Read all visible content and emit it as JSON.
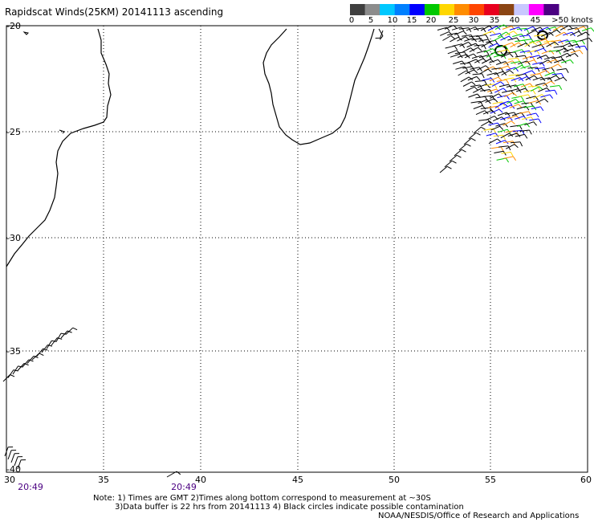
{
  "title": "Rapidscat Winds(25KM) 20141113 ascending",
  "legend": {
    "labels": [
      "0",
      "5",
      "10",
      "15",
      "20",
      "25",
      "30",
      "35",
      "40",
      "45",
      ">50 knots"
    ],
    "colors": [
      "#3f3f3f",
      "#8c8c8c",
      "#00c8ff",
      "#0080ff",
      "#0000ff",
      "#00c800",
      "#ffd700",
      "#ff8c00",
      "#ff4500",
      "#e8001e",
      "#8b4513",
      "#c8c8ff",
      "#ff00ff",
      "#4b0082"
    ]
  },
  "axes": {
    "lat_labels": [
      "-20",
      "-25",
      "-30",
      "-35",
      "-40"
    ],
    "lon_labels": [
      "30",
      "35",
      "40",
      "45",
      "50",
      "55",
      "60"
    ]
  },
  "times": [
    "20:49",
    "20:49"
  ],
  "notes": {
    "line1": "Note: 1) Times are GMT 2)Times along bottom correspond to measurement at ~30S",
    "line2": "3)Data buffer is 22 hrs from 20141113 4) Black circles indicate possible contamination",
    "line3": "NOAA/NESDIS/Office of Research and Applications"
  },
  "map": {
    "lon_range": [
      30,
      60
    ],
    "lat_range": [
      -40,
      -20
    ],
    "grid": "dotted"
  }
}
